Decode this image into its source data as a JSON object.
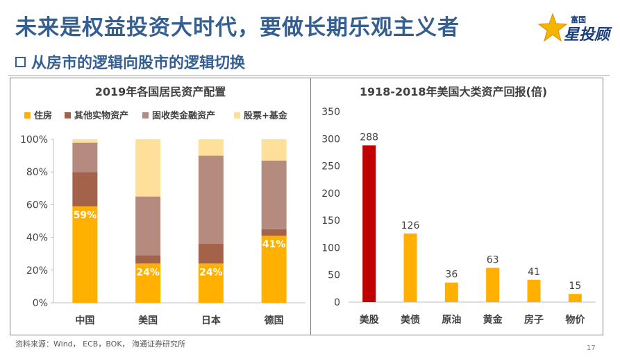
{
  "header": {
    "title": "未来是权益投资大时代，要做长期乐观主义者",
    "subtitle": "从房市的逻辑向股市的逻辑切换",
    "logo_small": "富国",
    "logo_big": "星投顾"
  },
  "footer": {
    "source": "资料来源：Wind， ECB，BOK， 海通证券研究所",
    "page_number": "17"
  },
  "colors": {
    "title": "#365f91",
    "orange": "#ffb000",
    "brown": "#a5624a",
    "mauve": "#b68b7f",
    "cream": "#fee09a",
    "red": "#c00000"
  },
  "chart_data": [
    {
      "type": "bar",
      "stacked": true,
      "title": "2019年各国居民资产配置",
      "categories": [
        "中国",
        "美国",
        "日本",
        "德国"
      ],
      "series": [
        {
          "name": "住房",
          "values": [
            59,
            24,
            24,
            41
          ]
        },
        {
          "name": "其他实物资产",
          "values": [
            21,
            5,
            12,
            4
          ]
        },
        {
          "name": "固收类金融资产",
          "values": [
            18,
            36,
            54,
            42
          ]
        },
        {
          "name": "股票+基金",
          "values": [
            2,
            35,
            10,
            13
          ]
        }
      ],
      "data_labels": [
        "59%",
        "24%",
        "24%",
        "41%"
      ],
      "ylim": [
        0,
        100
      ],
      "yticks": [
        "0%",
        "20%",
        "40%",
        "60%",
        "80%",
        "100%"
      ],
      "legend": "top"
    },
    {
      "type": "bar",
      "title": "1918-2018年美国大类资产回报(倍)",
      "categories": [
        "美股",
        "美债",
        "原油",
        "黄金",
        "房子",
        "物价"
      ],
      "values": [
        288,
        126,
        36,
        63,
        41,
        15
      ],
      "ylim": [
        0,
        350
      ],
      "yticks": [
        "0",
        "50",
        "100",
        "150",
        "200",
        "250",
        "300",
        "350"
      ]
    }
  ]
}
